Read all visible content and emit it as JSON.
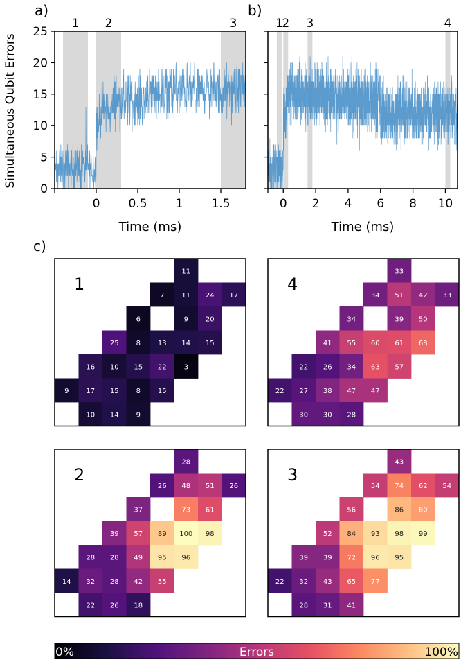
{
  "chart_data": [
    {
      "id": "a",
      "type": "line",
      "panel_label": "a)",
      "xlabel": "Time (ms)",
      "ylabel": "Simultaneous Qubit Errors",
      "xlim": [
        -0.5,
        1.8
      ],
      "ylim": [
        0,
        25
      ],
      "xticks": [
        0,
        0.5,
        1,
        1.5
      ],
      "xtick_labels": [
        "0",
        "0.5",
        "1",
        "1.5"
      ],
      "yticks": [
        0,
        5,
        10,
        15,
        20,
        25
      ],
      "ytick_labels": [
        "0",
        "5",
        "10",
        "15",
        "20",
        "25"
      ],
      "color": "#4a90c8",
      "shaded_regions": [
        {
          "label": "1",
          "x0": -0.4,
          "x1": -0.1
        },
        {
          "label": "2",
          "x0": 0.0,
          "x1": 0.3
        },
        {
          "label": "3",
          "x0": 1.5,
          "x1": 1.8
        }
      ],
      "series_profile": [
        {
          "t0": -0.5,
          "t1": 0.0,
          "mean": 3.2,
          "spread": 2.2
        },
        {
          "t0": 0.0,
          "t1": 0.05,
          "mean": 10.5,
          "spread": 2.5
        },
        {
          "t0": 0.05,
          "t1": 0.2,
          "mean": 12.5,
          "spread": 2.5
        },
        {
          "t0": 0.2,
          "t1": 0.6,
          "mean": 14.0,
          "spread": 2.5
        },
        {
          "t0": 0.6,
          "t1": 1.8,
          "mean": 15.5,
          "spread": 2.5
        }
      ]
    },
    {
      "id": "b",
      "type": "line",
      "panel_label": "b)",
      "xlabel": "Time (ms)",
      "ylabel": "",
      "xlim": [
        -0.95,
        10.75
      ],
      "ylim": [
        0,
        25
      ],
      "xticks": [
        0,
        2,
        4,
        6,
        8,
        10
      ],
      "xtick_labels": [
        "0",
        "2",
        "4",
        "6",
        "8",
        "10"
      ],
      "yticks": [
        0,
        5,
        10,
        15,
        20,
        25
      ],
      "ytick_labels": [
        "",
        "",
        "",
        "",
        "",
        ""
      ],
      "color": "#4a90c8",
      "shaded_regions": [
        {
          "label": "1",
          "x0": -0.4,
          "x1": -0.1
        },
        {
          "label": "2",
          "x0": 0.0,
          "x1": 0.3
        },
        {
          "label": "3",
          "x0": 1.5,
          "x1": 1.8
        },
        {
          "label": "4",
          "x0": 10.0,
          "x1": 10.3
        }
      ],
      "series_profile": [
        {
          "t0": -0.95,
          "t1": 0.0,
          "mean": 3.2,
          "spread": 2.3
        },
        {
          "t0": 0.0,
          "t1": 0.2,
          "mean": 11.0,
          "spread": 3.0
        },
        {
          "t0": 0.2,
          "t1": 3.0,
          "mean": 15.0,
          "spread": 3.0
        },
        {
          "t0": 3.0,
          "t1": 6.0,
          "mean": 14.0,
          "spread": 3.0
        },
        {
          "t0": 6.0,
          "t1": 10.75,
          "mean": 12.0,
          "spread": 3.0
        }
      ]
    },
    {
      "id": "c",
      "type": "heatmap",
      "panel_label": "c)",
      "colormap": "magma",
      "colorbar": {
        "label": "Errors",
        "min_label": "0%",
        "max_label": "100%",
        "min": 0,
        "max": 100
      },
      "columns": 8,
      "rows": 7,
      "maps": [
        {
          "label": "1",
          "cells": [
            {
              "r": 0,
              "c": 5,
              "v": 11
            },
            {
              "r": 1,
              "c": 4,
              "v": 7
            },
            {
              "r": 1,
              "c": 5,
              "v": 11
            },
            {
              "r": 1,
              "c": 6,
              "v": 24
            },
            {
              "r": 1,
              "c": 7,
              "v": 17
            },
            {
              "r": 2,
              "c": 3,
              "v": 6
            },
            {
              "r": 2,
              "c": 5,
              "v": 9
            },
            {
              "r": 2,
              "c": 6,
              "v": 20
            },
            {
              "r": 3,
              "c": 2,
              "v": 25
            },
            {
              "r": 3,
              "c": 3,
              "v": 8
            },
            {
              "r": 3,
              "c": 4,
              "v": 13
            },
            {
              "r": 3,
              "c": 5,
              "v": 14
            },
            {
              "r": 3,
              "c": 6,
              "v": 15
            },
            {
              "r": 4,
              "c": 1,
              "v": 16
            },
            {
              "r": 4,
              "c": 2,
              "v": 10
            },
            {
              "r": 4,
              "c": 3,
              "v": 15
            },
            {
              "r": 4,
              "c": 4,
              "v": 22
            },
            {
              "r": 4,
              "c": 5,
              "v": 3
            },
            {
              "r": 5,
              "c": 0,
              "v": 9
            },
            {
              "r": 5,
              "c": 1,
              "v": 17
            },
            {
              "r": 5,
              "c": 2,
              "v": 15
            },
            {
              "r": 5,
              "c": 3,
              "v": 8
            },
            {
              "r": 5,
              "c": 4,
              "v": 15
            },
            {
              "r": 6,
              "c": 1,
              "v": 10
            },
            {
              "r": 6,
              "c": 2,
              "v": 14
            },
            {
              "r": 6,
              "c": 3,
              "v": 9
            }
          ]
        },
        {
          "label": "4",
          "cells": [
            {
              "r": 0,
              "c": 5,
              "v": 33
            },
            {
              "r": 1,
              "c": 4,
              "v": 34
            },
            {
              "r": 1,
              "c": 5,
              "v": 51
            },
            {
              "r": 1,
              "c": 6,
              "v": 42
            },
            {
              "r": 1,
              "c": 7,
              "v": 33
            },
            {
              "r": 2,
              "c": 3,
              "v": 34
            },
            {
              "r": 2,
              "c": 5,
              "v": 39
            },
            {
              "r": 2,
              "c": 6,
              "v": 50
            },
            {
              "r": 3,
              "c": 2,
              "v": 41
            },
            {
              "r": 3,
              "c": 3,
              "v": 55
            },
            {
              "r": 3,
              "c": 4,
              "v": 60
            },
            {
              "r": 3,
              "c": 5,
              "v": 61
            },
            {
              "r": 3,
              "c": 6,
              "v": 68
            },
            {
              "r": 4,
              "c": 1,
              "v": 22
            },
            {
              "r": 4,
              "c": 2,
              "v": 26
            },
            {
              "r": 4,
              "c": 3,
              "v": 34
            },
            {
              "r": 4,
              "c": 4,
              "v": 63
            },
            {
              "r": 4,
              "c": 5,
              "v": 57
            },
            {
              "r": 5,
              "c": 0,
              "v": 22
            },
            {
              "r": 5,
              "c": 1,
              "v": 27
            },
            {
              "r": 5,
              "c": 2,
              "v": 38
            },
            {
              "r": 5,
              "c": 3,
              "v": 47
            },
            {
              "r": 5,
              "c": 4,
              "v": 47
            },
            {
              "r": 6,
              "c": 1,
              "v": 30
            },
            {
              "r": 6,
              "c": 2,
              "v": 30
            },
            {
              "r": 6,
              "c": 3,
              "v": 28
            }
          ]
        },
        {
          "label": "2",
          "cells": [
            {
              "r": 0,
              "c": 5,
              "v": 28
            },
            {
              "r": 1,
              "c": 4,
              "v": 26
            },
            {
              "r": 1,
              "c": 5,
              "v": 48
            },
            {
              "r": 1,
              "c": 6,
              "v": 51
            },
            {
              "r": 1,
              "c": 7,
              "v": 26
            },
            {
              "r": 2,
              "c": 3,
              "v": 37
            },
            {
              "r": 2,
              "c": 5,
              "v": 73
            },
            {
              "r": 2,
              "c": 6,
              "v": 61
            },
            {
              "r": 3,
              "c": 2,
              "v": 39
            },
            {
              "r": 3,
              "c": 3,
              "v": 57
            },
            {
              "r": 3,
              "c": 4,
              "v": 89
            },
            {
              "r": 3,
              "c": 5,
              "v": 100
            },
            {
              "r": 3,
              "c": 6,
              "v": 98
            },
            {
              "r": 4,
              "c": 1,
              "v": 28
            },
            {
              "r": 4,
              "c": 2,
              "v": 28
            },
            {
              "r": 4,
              "c": 3,
              "v": 49
            },
            {
              "r": 4,
              "c": 4,
              "v": 95
            },
            {
              "r": 4,
              "c": 5,
              "v": 96
            },
            {
              "r": 5,
              "c": 0,
              "v": 14
            },
            {
              "r": 5,
              "c": 1,
              "v": 32
            },
            {
              "r": 5,
              "c": 2,
              "v": 28
            },
            {
              "r": 5,
              "c": 3,
              "v": 42
            },
            {
              "r": 5,
              "c": 4,
              "v": 55
            },
            {
              "r": 6,
              "c": 1,
              "v": 22
            },
            {
              "r": 6,
              "c": 2,
              "v": 26
            },
            {
              "r": 6,
              "c": 3,
              "v": 18
            }
          ]
        },
        {
          "label": "3",
          "cells": [
            {
              "r": 0,
              "c": 5,
              "v": 43
            },
            {
              "r": 1,
              "c": 4,
              "v": 54
            },
            {
              "r": 1,
              "c": 5,
              "v": 74
            },
            {
              "r": 1,
              "c": 6,
              "v": 62
            },
            {
              "r": 1,
              "c": 7,
              "v": 54
            },
            {
              "r": 2,
              "c": 3,
              "v": 56
            },
            {
              "r": 2,
              "c": 5,
              "v": 86
            },
            {
              "r": 2,
              "c": 6,
              "v": 80
            },
            {
              "r": 3,
              "c": 2,
              "v": 52
            },
            {
              "r": 3,
              "c": 3,
              "v": 84
            },
            {
              "r": 3,
              "c": 4,
              "v": 93
            },
            {
              "r": 3,
              "c": 5,
              "v": 98
            },
            {
              "r": 3,
              "c": 6,
              "v": 99
            },
            {
              "r": 4,
              "c": 1,
              "v": 39
            },
            {
              "r": 4,
              "c": 2,
              "v": 39
            },
            {
              "r": 4,
              "c": 3,
              "v": 72
            },
            {
              "r": 4,
              "c": 4,
              "v": 96
            },
            {
              "r": 4,
              "c": 5,
              "v": 95
            },
            {
              "r": 5,
              "c": 0,
              "v": 22
            },
            {
              "r": 5,
              "c": 1,
              "v": 32
            },
            {
              "r": 5,
              "c": 2,
              "v": 43
            },
            {
              "r": 5,
              "c": 3,
              "v": 65
            },
            {
              "r": 5,
              "c": 4,
              "v": 77
            },
            {
              "r": 6,
              "c": 1,
              "v": 28
            },
            {
              "r": 6,
              "c": 2,
              "v": 31
            },
            {
              "r": 6,
              "c": 3,
              "v": 41
            }
          ]
        }
      ]
    }
  ]
}
